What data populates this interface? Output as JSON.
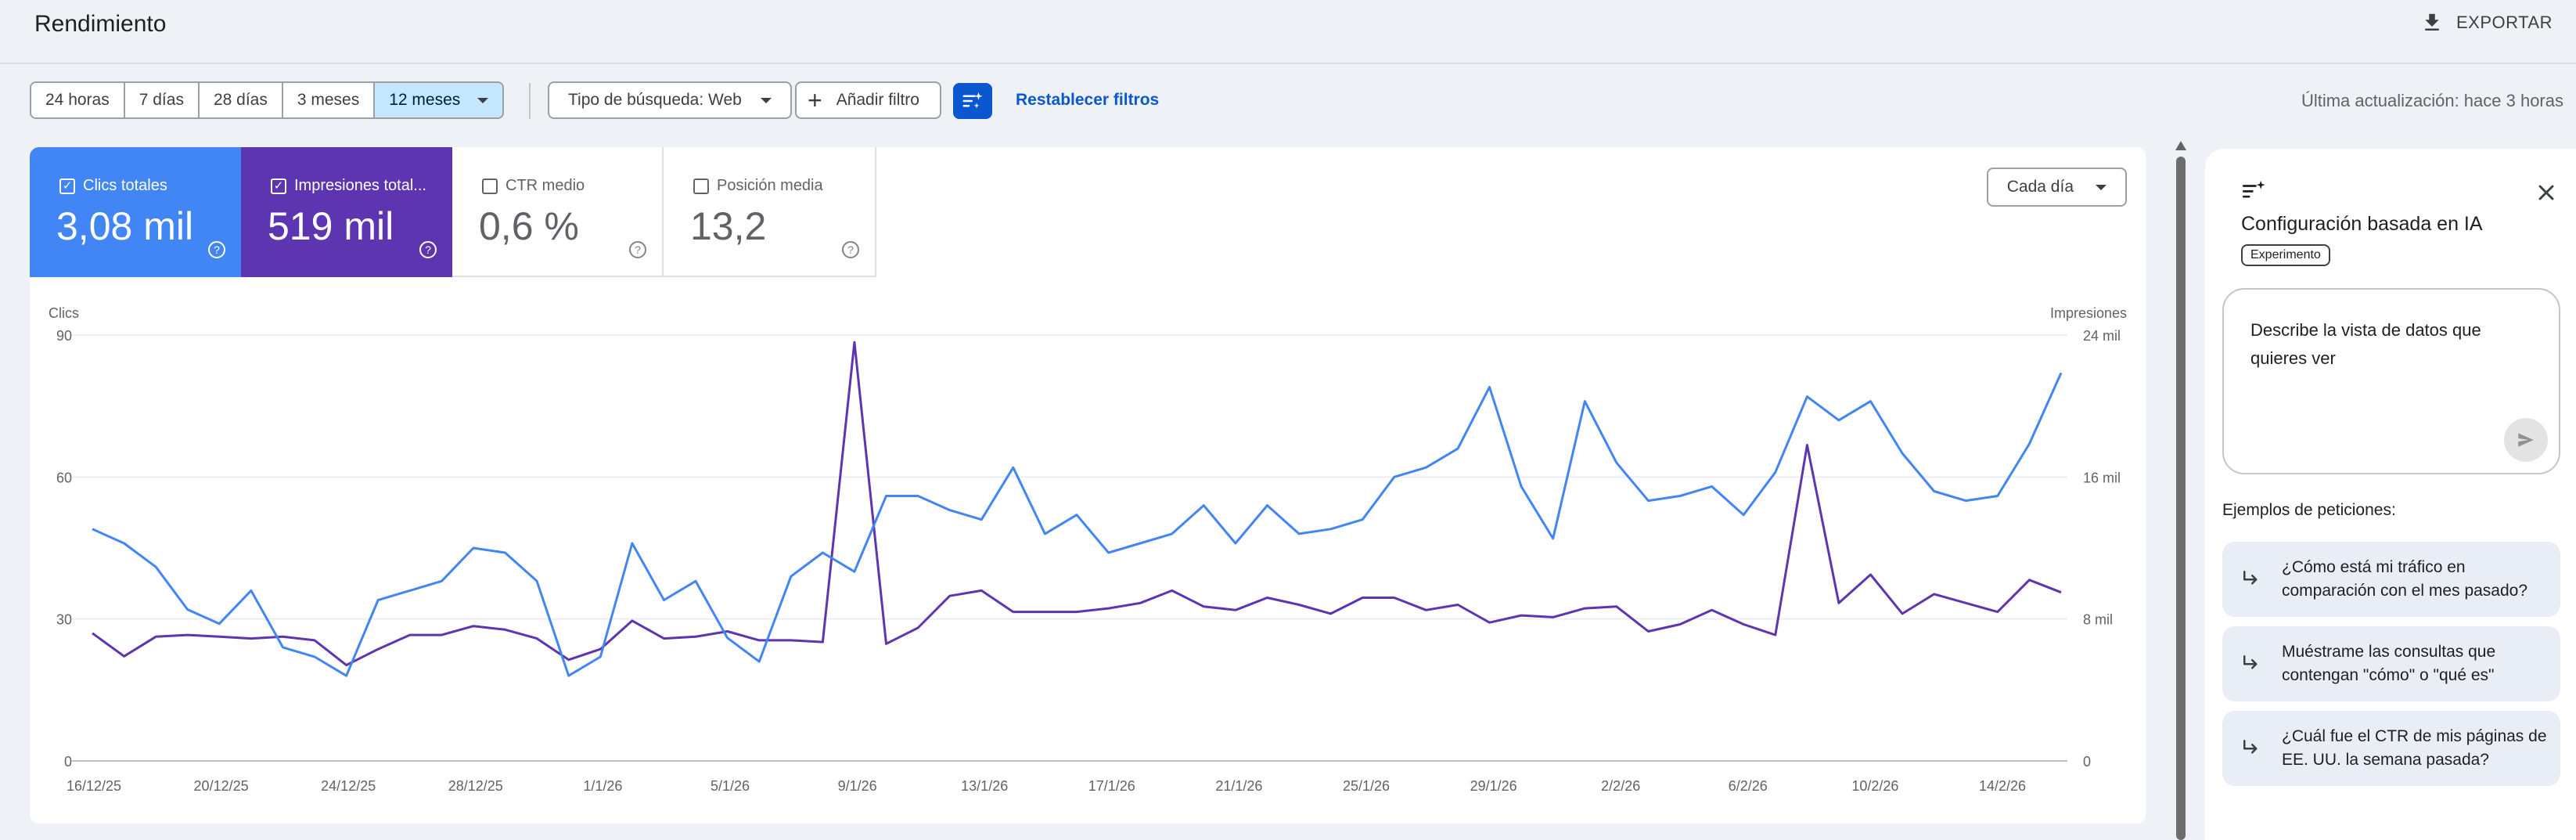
{
  "header": {
    "title": "Rendimiento",
    "export_label": "EXPORTAR"
  },
  "filters": {
    "date_ranges": [
      "24 horas",
      "7 días",
      "28 días",
      "3 meses",
      "12 meses"
    ],
    "selected_range": "12 meses",
    "search_type": "Tipo de búsqueda: Web",
    "add_filter": "Añadir filtro",
    "reset": "Restablecer filtros",
    "last_update": "Última actualización: hace 3 horas"
  },
  "metrics": {
    "clicks": {
      "label": "Clics totales",
      "value": "3,08 mil",
      "checked": true,
      "color": "#4285f4"
    },
    "impressions": {
      "label": "Impresiones total...",
      "value": "519 mil",
      "checked": true,
      "color": "#5e35b1"
    },
    "ctr": {
      "label": "CTR medio",
      "value": "0,6 %",
      "checked": false
    },
    "position": {
      "label": "Posición media",
      "value": "13,2",
      "checked": false
    }
  },
  "granularity": "Cada día",
  "chart_data": {
    "type": "line",
    "left_axis": {
      "label": "Clics",
      "ticks": [
        "0",
        "30",
        "60",
        "90"
      ],
      "range": [
        0,
        90
      ]
    },
    "right_axis": {
      "label": "Impresiones",
      "ticks": [
        "0",
        "8 mil",
        "16 mil",
        "24 mil"
      ],
      "range": [
        0,
        24000
      ]
    },
    "x_labels": [
      "16/12/25",
      "20/12/25",
      "24/12/25",
      "28/12/25",
      "1/1/26",
      "5/1/26",
      "9/1/26",
      "13/1/26",
      "17/1/26",
      "21/1/26",
      "25/1/26",
      "29/1/26",
      "2/2/26",
      "6/2/26",
      "10/2/26",
      "14/2/26"
    ],
    "series": [
      {
        "name": "Clics",
        "axis": "left",
        "color": "#4285f4",
        "values": [
          49,
          46,
          41,
          32,
          29,
          36,
          24,
          22,
          18,
          34,
          36,
          38,
          45,
          44,
          38,
          18,
          22,
          46,
          34,
          38,
          26,
          21,
          39,
          44,
          40,
          56,
          56,
          53,
          51,
          62,
          48,
          52,
          44,
          46,
          48,
          54,
          46,
          54,
          48,
          49,
          51,
          60,
          62,
          66,
          79,
          58,
          47,
          76,
          63,
          55,
          56,
          58,
          52,
          61,
          77,
          72,
          76,
          65,
          57,
          55,
          56,
          67,
          82
        ]
      },
      {
        "name": "Impresiones",
        "axis": "right",
        "color": "#5e35b1",
        "values": [
          7200,
          5900,
          7000,
          7100,
          7000,
          6900,
          7000,
          6800,
          5400,
          6300,
          7100,
          7100,
          7600,
          7400,
          6900,
          5700,
          6300,
          7900,
          6900,
          7000,
          7300,
          6800,
          6800,
          6700,
          23600,
          6600,
          7500,
          9300,
          9600,
          8400,
          8400,
          8400,
          8600,
          8900,
          9600,
          8700,
          8500,
          9200,
          8800,
          8300,
          9200,
          9200,
          8500,
          8800,
          7800,
          8200,
          8100,
          8600,
          8700,
          7300,
          7700,
          8500,
          7700,
          7100,
          17800,
          8900,
          10500,
          8300,
          9400,
          8900,
          8400,
          10200,
          9500
        ]
      }
    ]
  },
  "ai_panel": {
    "title": "Configuración basada en IA",
    "badge": "Experimento",
    "prompt_placeholder": "Describe la vista de datos que quieres ver",
    "examples_title": "Ejemplos de peticiones:",
    "examples": [
      "¿Cómo está mi tráfico en comparación con el mes pasado?",
      "Muéstrame las consultas que contengan \"cómo\" o \"qué es\"",
      "¿Cuál fue el CTR de mis páginas de EE. UU. la semana pasada?"
    ]
  }
}
